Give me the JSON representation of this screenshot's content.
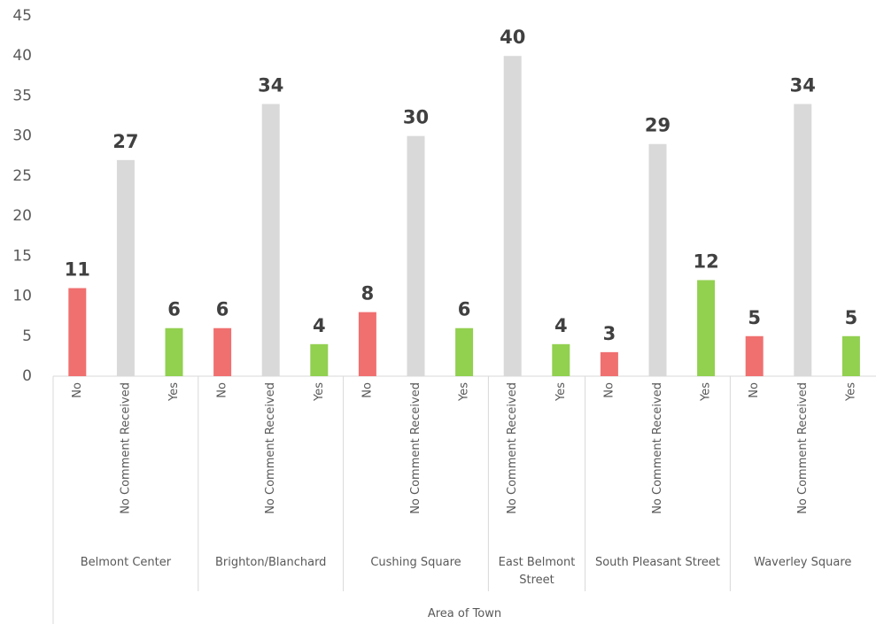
{
  "chart_data": {
    "type": "bar",
    "x_label": "Area of Town",
    "ylim": [
      0,
      45
    ],
    "yticks": [
      0,
      5,
      10,
      15,
      20,
      25,
      30,
      35,
      40,
      45
    ],
    "grid": false,
    "groups": [
      {
        "name": "Belmont Center",
        "categories": [
          "No",
          "No Comment Received",
          "Yes"
        ],
        "values": [
          11,
          27,
          6
        ],
        "colors": [
          "#f07070",
          "#d9d9d9",
          "#92d050"
        ]
      },
      {
        "name": "Brighton/Blanchard",
        "categories": [
          "No",
          "No Comment Received",
          "Yes"
        ],
        "values": [
          6,
          34,
          4
        ],
        "colors": [
          "#f07070",
          "#d9d9d9",
          "#92d050"
        ]
      },
      {
        "name": "Cushing Square",
        "categories": [
          "No",
          "No Comment Received",
          "Yes"
        ],
        "values": [
          8,
          30,
          6
        ],
        "colors": [
          "#f07070",
          "#d9d9d9",
          "#92d050"
        ]
      },
      {
        "name": "East Belmont Street",
        "categories": [
          "No Comment Received",
          "Yes"
        ],
        "values": [
          40,
          4
        ],
        "colors": [
          "#d9d9d9",
          "#92d050"
        ]
      },
      {
        "name": "South Pleasant Street",
        "categories": [
          "No",
          "No Comment Received",
          "Yes"
        ],
        "values": [
          3,
          29,
          12
        ],
        "colors": [
          "#f07070",
          "#d9d9d9",
          "#92d050"
        ]
      },
      {
        "name": "Waverley Square",
        "categories": [
          "No",
          "No Comment Received",
          "Yes"
        ],
        "values": [
          5,
          34,
          5
        ],
        "colors": [
          "#f07070",
          "#d9d9d9",
          "#92d050"
        ]
      }
    ]
  }
}
